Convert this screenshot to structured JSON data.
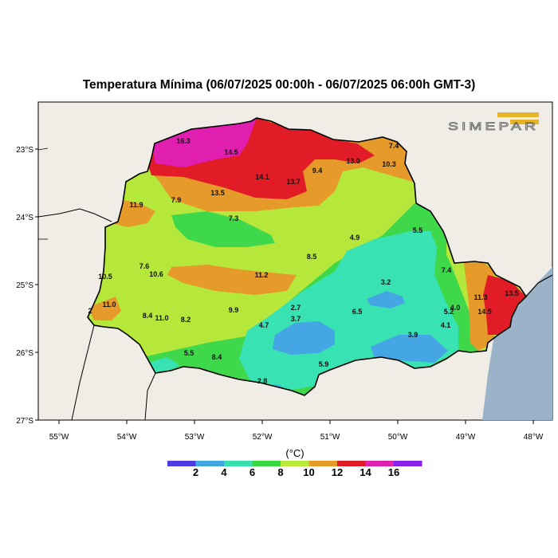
{
  "title": "Temperatura Mínima (06/07/2025 00:00h - 06/07/2025 06:00h GMT-3)",
  "logo_text": "SIMEPAR",
  "axes": {
    "lat_labels": [
      "23°S",
      "24°S",
      "25°S",
      "26°S",
      "27°S"
    ],
    "lon_labels": [
      "55°W",
      "54°W",
      "53°W",
      "52°W",
      "51°W",
      "50°W",
      "49°W",
      "48°W"
    ]
  },
  "colorbar": {
    "unit": "(°C)",
    "ticks": [
      "2",
      "4",
      "6",
      "8",
      "10",
      "12",
      "14",
      "16"
    ],
    "colors": [
      "#4b3be0",
      "#3fa8e0",
      "#38e0b0",
      "#38d840",
      "#b8e838",
      "#e89a28",
      "#e01b24",
      "#e020b0",
      "#8a20e8"
    ]
  },
  "colors": {
    "land_background": "#efede5",
    "ocean": "#9bb3c8",
    "temp_2_4": "#44a6e4",
    "temp_4_6": "#38e2b2",
    "temp_6_8": "#3ed84a",
    "temp_8_10": "#b6e83c",
    "temp_10_12": "#e69a2a",
    "temp_12_14": "#e21c26",
    "temp_14_16": "#e01fb0"
  },
  "station_values": [
    "16.3",
    "14.5",
    "7.4",
    "13.0",
    "10.3",
    "9.4",
    "14.1",
    "13.7",
    "13.5",
    "11.9",
    "7.9",
    "7.3",
    "4.9",
    "5.5",
    "8.5",
    "7.4",
    "7.6",
    "10.6",
    "11.2",
    "10.5",
    "11.0",
    "2",
    "8.4",
    "11.0",
    "8.2",
    "9.9",
    "2.7",
    "3.7",
    "6.5",
    "3.2",
    "5.2",
    "4.0",
    "4.1",
    "11.3",
    "14.5",
    "13.5",
    "5.5",
    "8.4",
    "4.7",
    "5.9",
    "3.9",
    "2.8"
  ]
}
